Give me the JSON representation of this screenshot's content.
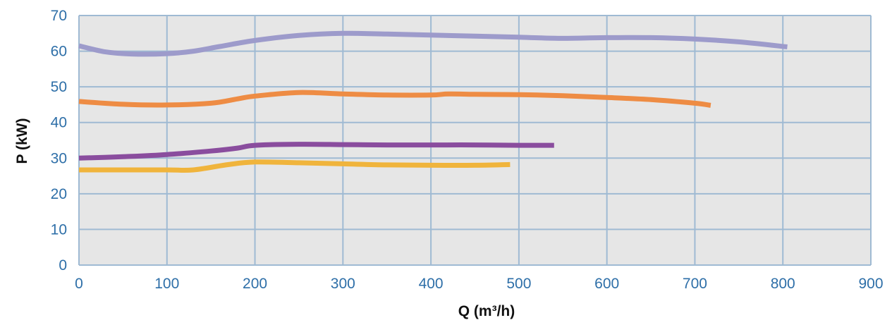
{
  "chart_data": {
    "type": "line",
    "title": "",
    "xlabel": "Q (m³/h)",
    "ylabel": "P (kW)",
    "xlim": [
      0,
      900
    ],
    "ylim": [
      0,
      70
    ],
    "xticks": [
      0,
      100,
      200,
      300,
      400,
      500,
      600,
      700,
      800,
      900
    ],
    "yticks": [
      0,
      10,
      20,
      30,
      40,
      50,
      60,
      70
    ],
    "grid": true,
    "legend": "none",
    "colors": {
      "plot_background": "#e6e6e6",
      "grid": "#9fbad3",
      "tick_text": "#2e6fa8",
      "axis_title": "#111111"
    },
    "series": [
      {
        "color": "#9d9bcb",
        "x": [
          0,
          30,
          60,
          100,
          130,
          160,
          200,
          250,
          300,
          350,
          400,
          450,
          500,
          550,
          600,
          650,
          700,
          750,
          805
        ],
        "y": [
          61.5,
          59.8,
          59.2,
          59.3,
          60.0,
          61.3,
          63.0,
          64.4,
          65.0,
          64.8,
          64.5,
          64.2,
          63.9,
          63.6,
          63.8,
          63.8,
          63.4,
          62.6,
          61.2
        ]
      },
      {
        "color": "#ee8c44",
        "x": [
          0,
          50,
          100,
          150,
          180,
          200,
          250,
          300,
          350,
          400,
          420,
          450,
          500,
          550,
          600,
          650,
          700,
          718
        ],
        "y": [
          45.9,
          45.1,
          44.9,
          45.4,
          46.6,
          47.4,
          48.4,
          48.0,
          47.7,
          47.7,
          48.0,
          47.9,
          47.8,
          47.5,
          47.0,
          46.4,
          45.4,
          44.8
        ]
      },
      {
        "color": "#8a4d9e",
        "x": [
          0,
          50,
          100,
          150,
          180,
          200,
          250,
          300,
          350,
          400,
          450,
          500,
          540
        ],
        "y": [
          30.0,
          30.4,
          31.0,
          32.0,
          32.8,
          33.6,
          33.9,
          33.8,
          33.7,
          33.7,
          33.7,
          33.6,
          33.6
        ]
      },
      {
        "color": "#f0b43c",
        "x": [
          0,
          50,
          100,
          130,
          170,
          200,
          250,
          300,
          350,
          400,
          450,
          490
        ],
        "y": [
          26.7,
          26.7,
          26.7,
          26.7,
          28.2,
          28.9,
          28.7,
          28.4,
          28.1,
          28.0,
          28.0,
          28.2
        ]
      }
    ]
  }
}
